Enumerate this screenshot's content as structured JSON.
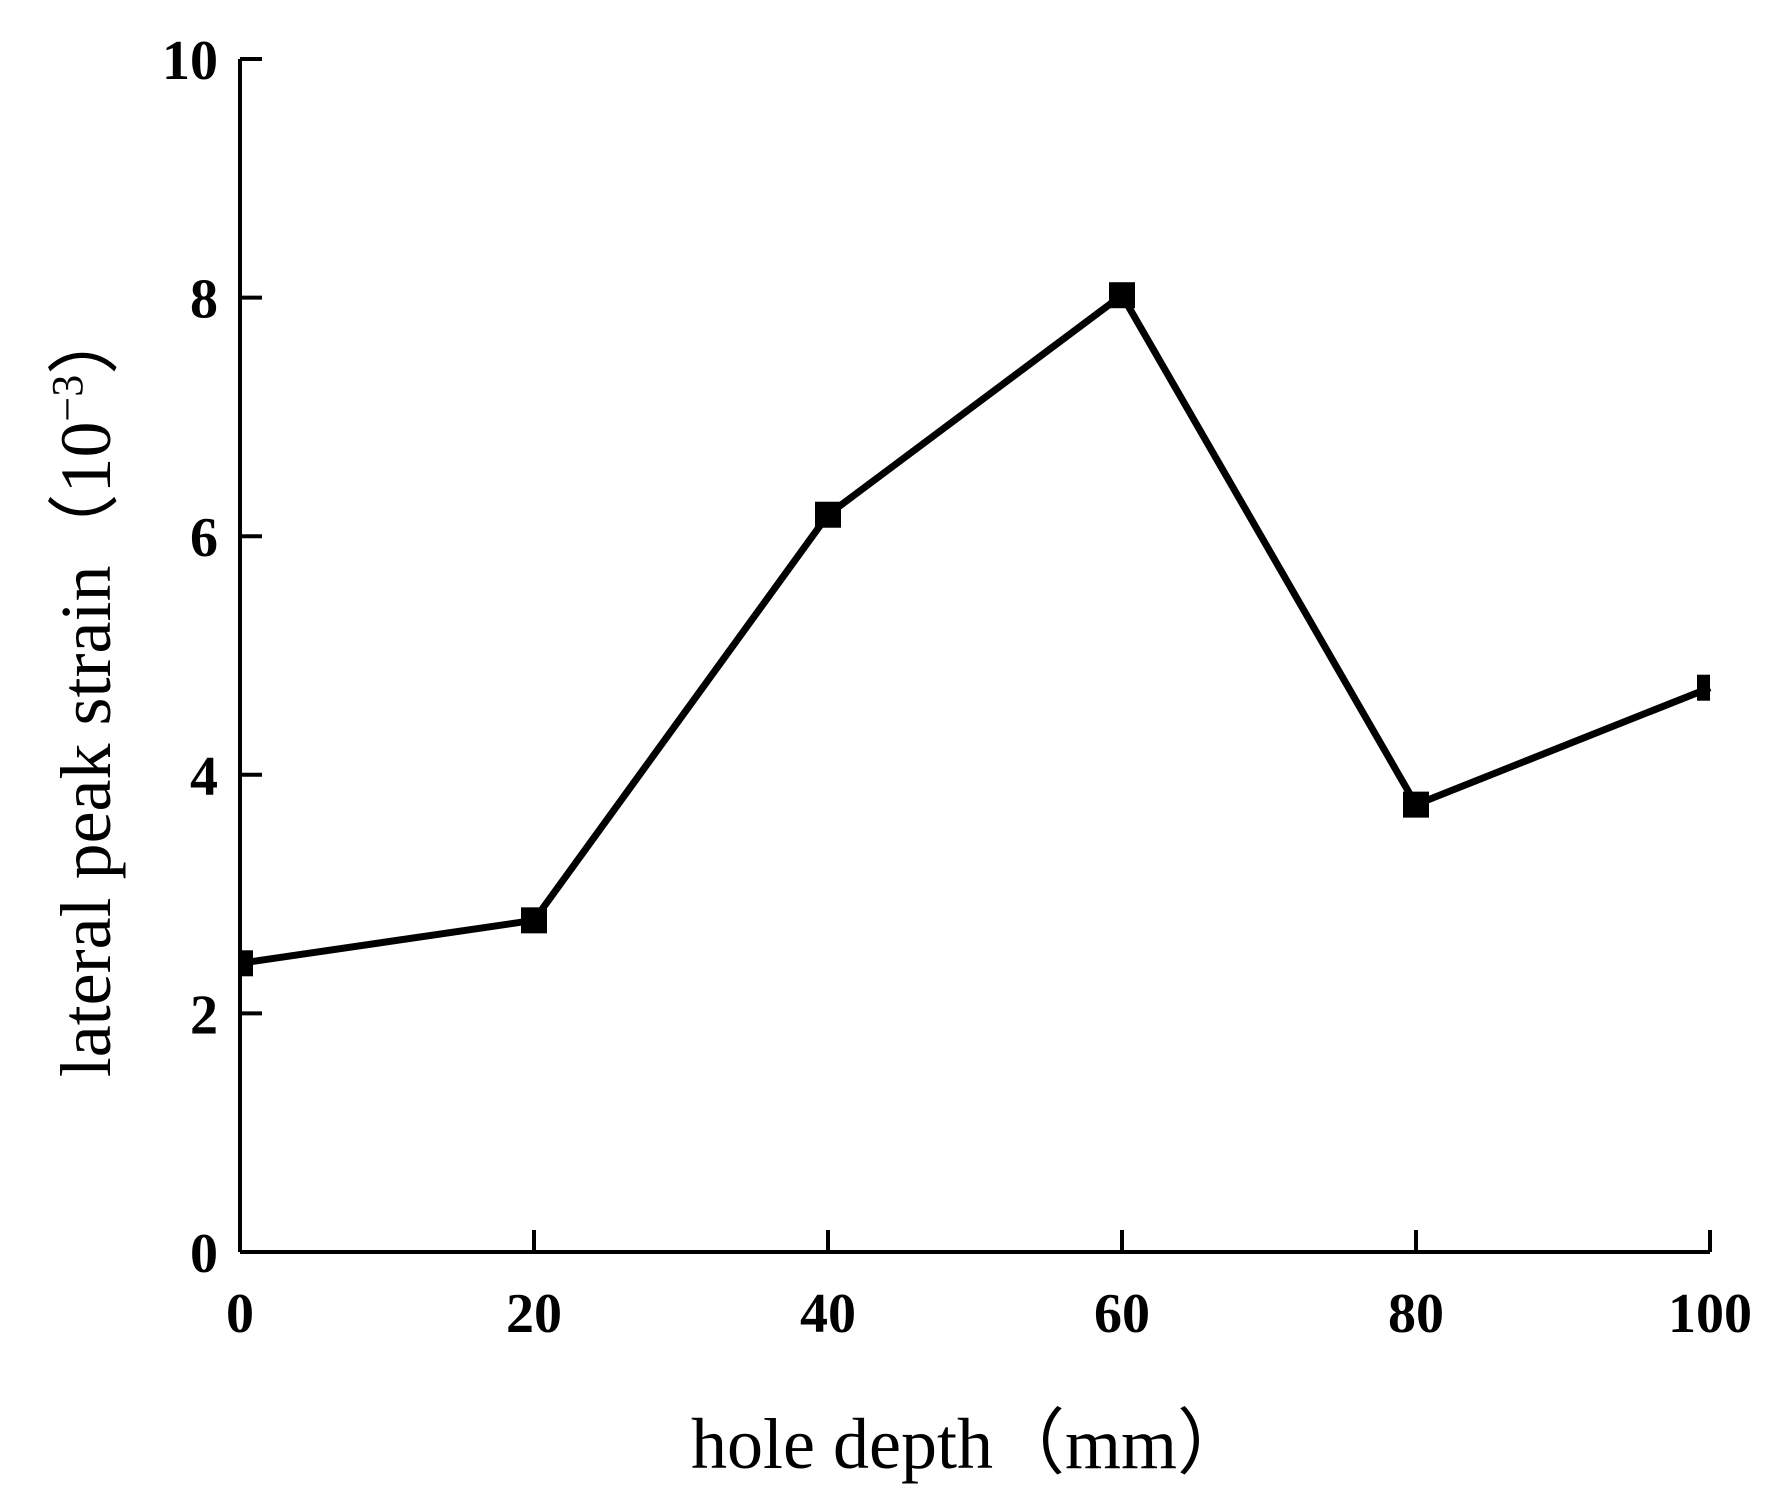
{
  "chart_data": {
    "type": "line",
    "title": "",
    "xlabel": "hole depth（mm）",
    "ylabel_main": "lateral peak strain（10",
    "ylabel_sup": "−3",
    "ylabel_tail": "）",
    "xlim": [
      0,
      100
    ],
    "ylim": [
      0,
      10
    ],
    "xticks": [
      0,
      20,
      40,
      60,
      80,
      100
    ],
    "yticks": [
      0,
      2,
      4,
      6,
      8,
      10
    ],
    "grid": false,
    "series": [
      {
        "x": [
          0,
          20,
          40,
          60,
          80,
          100
        ],
        "y": [
          2.42,
          2.78,
          6.18,
          8.02,
          3.75,
          4.73
        ],
        "color": "#000000",
        "marker": "square"
      }
    ]
  }
}
